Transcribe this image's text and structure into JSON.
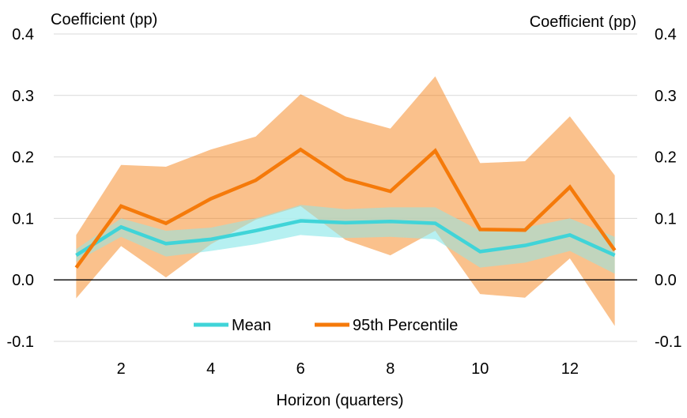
{
  "chart_data": {
    "type": "line",
    "xlabel": "Horizon (quarters)",
    "ylabel_left": "Coefficient (pp)",
    "ylabel_right": "Coefficient (pp)",
    "x": [
      1,
      2,
      3,
      4,
      5,
      6,
      7,
      8,
      9,
      10,
      11,
      12,
      13
    ],
    "xticks": [
      2,
      4,
      6,
      8,
      10,
      12
    ],
    "xtick_labels": [
      "2",
      "4",
      "6",
      "8",
      "10",
      "12"
    ],
    "xlim": [
      0.5,
      13.5
    ],
    "ylim": [
      -0.1,
      0.4
    ],
    "yticks": [
      -0.1,
      0.0,
      0.1,
      0.2,
      0.3,
      0.4
    ],
    "ytick_labels": [
      "-0.1",
      "0.0",
      "0.1",
      "0.2",
      "0.3",
      "0.4"
    ],
    "grid": true,
    "zero_line": true,
    "legend_position": "bottom-center",
    "series": [
      {
        "name": "Mean",
        "color": "#40D4D8",
        "values": [
          0.04,
          0.086,
          0.059,
          0.066,
          0.08,
          0.096,
          0.093,
          0.095,
          0.092,
          0.046,
          0.056,
          0.073,
          0.04
        ],
        "band_upper": [
          0.05,
          0.1,
          0.08,
          0.085,
          0.1,
          0.122,
          0.115,
          0.118,
          0.118,
          0.08,
          0.085,
          0.1,
          0.07
        ],
        "band_lower": [
          0.03,
          0.07,
          0.038,
          0.047,
          0.058,
          0.073,
          0.068,
          0.07,
          0.066,
          0.02,
          0.028,
          0.047,
          0.01
        ],
        "band_color": "#A9EDEE"
      },
      {
        "name": "95th Percentile",
        "color": "#F57A0A",
        "values": [
          0.02,
          0.12,
          0.092,
          0.132,
          0.162,
          0.212,
          0.164,
          0.144,
          0.21,
          0.082,
          0.081,
          0.151,
          0.048
        ],
        "band_upper": [
          0.073,
          0.187,
          0.184,
          0.212,
          0.233,
          0.302,
          0.266,
          0.246,
          0.331,
          0.19,
          0.193,
          0.266,
          0.17
        ],
        "band_lower": [
          -0.03,
          0.055,
          0.004,
          0.058,
          0.098,
          0.12,
          0.065,
          0.04,
          0.08,
          -0.023,
          -0.029,
          0.035,
          -0.075
        ],
        "band_color": "#F57A0A"
      }
    ]
  }
}
